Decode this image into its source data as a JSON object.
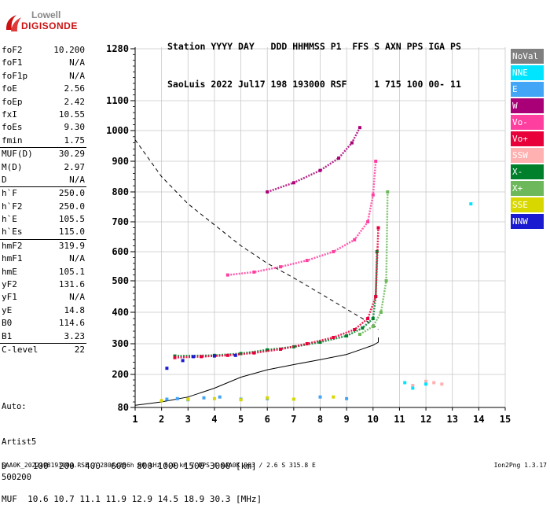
{
  "logo": {
    "line1": "Lowell",
    "line2": "DIGISONDE"
  },
  "header": {
    "line1": "Station YYYY DAY   DDD HHMMSS P1  FFS S AXN PPS IGA PS",
    "line2": "SaoLuis 2022 Jul17 198 193000 RSF     1 715 100 00- 11"
  },
  "params": [
    {
      "label": "foF2",
      "value": "10.200"
    },
    {
      "label": "foF1",
      "value": "N/A"
    },
    {
      "label": "foF1p",
      "value": "N/A"
    },
    {
      "label": "foE",
      "value": "2.56"
    },
    {
      "label": "foEp",
      "value": "2.42"
    },
    {
      "label": "fxI",
      "value": "10.55"
    },
    {
      "label": "foEs",
      "value": "9.30"
    },
    {
      "label": "fmin",
      "value": "1.75"
    },
    {
      "label": "MUF(D)",
      "value": "30.29",
      "sep": true
    },
    {
      "label": "M(D)",
      "value": "2.97"
    },
    {
      "label": "D",
      "value": "N/A"
    },
    {
      "label": "h`F",
      "value": "250.0",
      "sep": true
    },
    {
      "label": "h`F2",
      "value": "250.0"
    },
    {
      "label": "h`E",
      "value": "105.5"
    },
    {
      "label": "h`Es",
      "value": "115.0"
    },
    {
      "label": "hmF2",
      "value": "319.9",
      "sep": true
    },
    {
      "label": "hmF1",
      "value": "N/A"
    },
    {
      "label": "hmE",
      "value": "105.1"
    },
    {
      "label": "yF2",
      "value": "131.6"
    },
    {
      "label": "yF1",
      "value": "N/A"
    },
    {
      "label": "yE",
      "value": "14.8"
    },
    {
      "label": "B0",
      "value": "114.6"
    },
    {
      "label": "B1",
      "value": "3.23"
    },
    {
      "label": "C-level",
      "value": "22",
      "sep": true
    }
  ],
  "auto": {
    "line1": "Auto:",
    "line2": "Artist5",
    "line3": "500200"
  },
  "legend": [
    {
      "label": "NoVal",
      "color": "#7f7f7f"
    },
    {
      "label": "NNE",
      "color": "#00e5ff"
    },
    {
      "label": "E",
      "color": "#42a5f5"
    },
    {
      "label": "W",
      "color": "#aa0077"
    },
    {
      "label": "Vo-",
      "color": "#ff3fa0"
    },
    {
      "label": "Vo+",
      "color": "#e8003a"
    },
    {
      "label": "SSW",
      "color": "#ffb0b0"
    },
    {
      "label": "X-",
      "color": "#00802b"
    },
    {
      "label": "X+",
      "color": "#6cb85a"
    },
    {
      "label": "SSE",
      "color": "#d8d800"
    },
    {
      "label": "NNW",
      "color": "#1a1ad0"
    }
  ],
  "footer": {
    "distance_row": "D     100  200  400  600  800 1000 1500 3000 [km]",
    "muf_row": "MUF  10.6 10.7 11.1 11.9 12.9 14.5 18.9 30.3 [MHz]",
    "info": "SAA0K_2022198193000.RSF / 280fx256h 50 kHz 5.0 km / DPS-4 SAA0K 903 / 2.6 S 315.8 E",
    "version": "Ion2Png 1.3.17"
  },
  "chart_data": {
    "type": "scatter",
    "xlim": [
      1,
      15
    ],
    "ylim": [
      80,
      1300
    ],
    "x_ticks": [
      "1",
      "2",
      "3",
      "4",
      "5",
      "6",
      "7",
      "8",
      "9",
      "10",
      "11",
      "12",
      "13",
      "14",
      "15"
    ],
    "y_ticks": [
      "80",
      "200",
      "300",
      "400",
      "500",
      "600",
      "700",
      "800",
      "900",
      "1000",
      "1100",
      "1280"
    ],
    "y_tick_values": [
      80,
      200,
      300,
      400,
      500,
      600,
      700,
      800,
      900,
      1000,
      1100,
      1280
    ],
    "grid": true,
    "series": [
      {
        "name": "X-",
        "color": "#00802b",
        "x": [
          2.5,
          4.0,
          5.0,
          6.0,
          7.0,
          8.0,
          9.0,
          9.6,
          10.0,
          10.1,
          10.15
        ],
        "y": [
          260,
          262,
          268,
          280,
          290,
          305,
          325,
          350,
          380,
          450,
          600
        ]
      },
      {
        "name": "X+",
        "color": "#6cb85a",
        "x": [
          9.5,
          10.0,
          10.3,
          10.5,
          10.55
        ],
        "y": [
          330,
          355,
          400,
          500,
          800
        ]
      },
      {
        "name": "Vo+",
        "color": "#e8003a",
        "x": [
          2.5,
          3.5,
          4.5,
          5.5,
          6.5,
          7.5,
          8.5,
          9.3,
          9.8,
          10.1,
          10.2
        ],
        "y": [
          255,
          258,
          262,
          270,
          282,
          300,
          320,
          345,
          380,
          450,
          680
        ]
      },
      {
        "name": "Vo-",
        "color": "#ff3fa0",
        "x": [
          4.5,
          5.5,
          6.5,
          7.5,
          8.5,
          9.3,
          9.8,
          10.0,
          10.1
        ],
        "y": [
          520,
          530,
          548,
          570,
          600,
          640,
          700,
          790,
          900
        ]
      },
      {
        "name": "W",
        "color": "#aa0077",
        "x": [
          6.0,
          7.0,
          8.0,
          8.7,
          9.2,
          9.5
        ],
        "y": [
          800,
          830,
          870,
          910,
          960,
          1010
        ]
      },
      {
        "name": "NNW",
        "color": "#1a1ad0",
        "x": [
          2.2,
          2.8,
          3.2,
          4.0,
          4.8
        ],
        "y": [
          220,
          245,
          258,
          260,
          262
        ]
      },
      {
        "name": "E",
        "color": "#42a5f5",
        "x": [
          2.2,
          2.6,
          3.0,
          3.6,
          4.2,
          5.0,
          6.0,
          7.0,
          8.0,
          9.0
        ],
        "y": [
          110,
          112,
          108,
          115,
          118,
          110,
          112,
          110,
          118,
          112
        ]
      },
      {
        "name": "SSE",
        "color": "#d8d800",
        "x": [
          2.0,
          3.0,
          4.0,
          5.0,
          6.0,
          7.0,
          8.5
        ],
        "y": [
          105,
          110,
          112,
          108,
          115,
          110,
          118
        ]
      },
      {
        "name": "SSW",
        "color": "#ffb0b0",
        "x": [
          11.5,
          12.0,
          12.3,
          12.6
        ],
        "y": [
          160,
          175,
          170,
          165
        ]
      },
      {
        "name": "NNE",
        "color": "#00e5ff",
        "x": [
          11.2,
          11.5,
          12.0,
          13.7
        ],
        "y": [
          170,
          150,
          165,
          760
        ]
      }
    ],
    "profile_solid": {
      "x": [
        1.0,
        2.0,
        3.0,
        4.0,
        5.0,
        6.0,
        7.0,
        8.0,
        9.0,
        9.5,
        10.0,
        10.2,
        10.2
      ],
      "y": [
        88,
        100,
        118,
        150,
        190,
        215,
        232,
        248,
        265,
        280,
        295,
        305,
        320
      ]
    },
    "profile_dashed": {
      "x": [
        1.0,
        2.0,
        3.0,
        4.0,
        5.0,
        6.0,
        7.0,
        8.0,
        9.0,
        9.5,
        10.0,
        10.2
      ],
      "y": [
        970,
        850,
        760,
        690,
        620,
        560,
        510,
        460,
        410,
        385,
        360,
        345
      ]
    }
  }
}
